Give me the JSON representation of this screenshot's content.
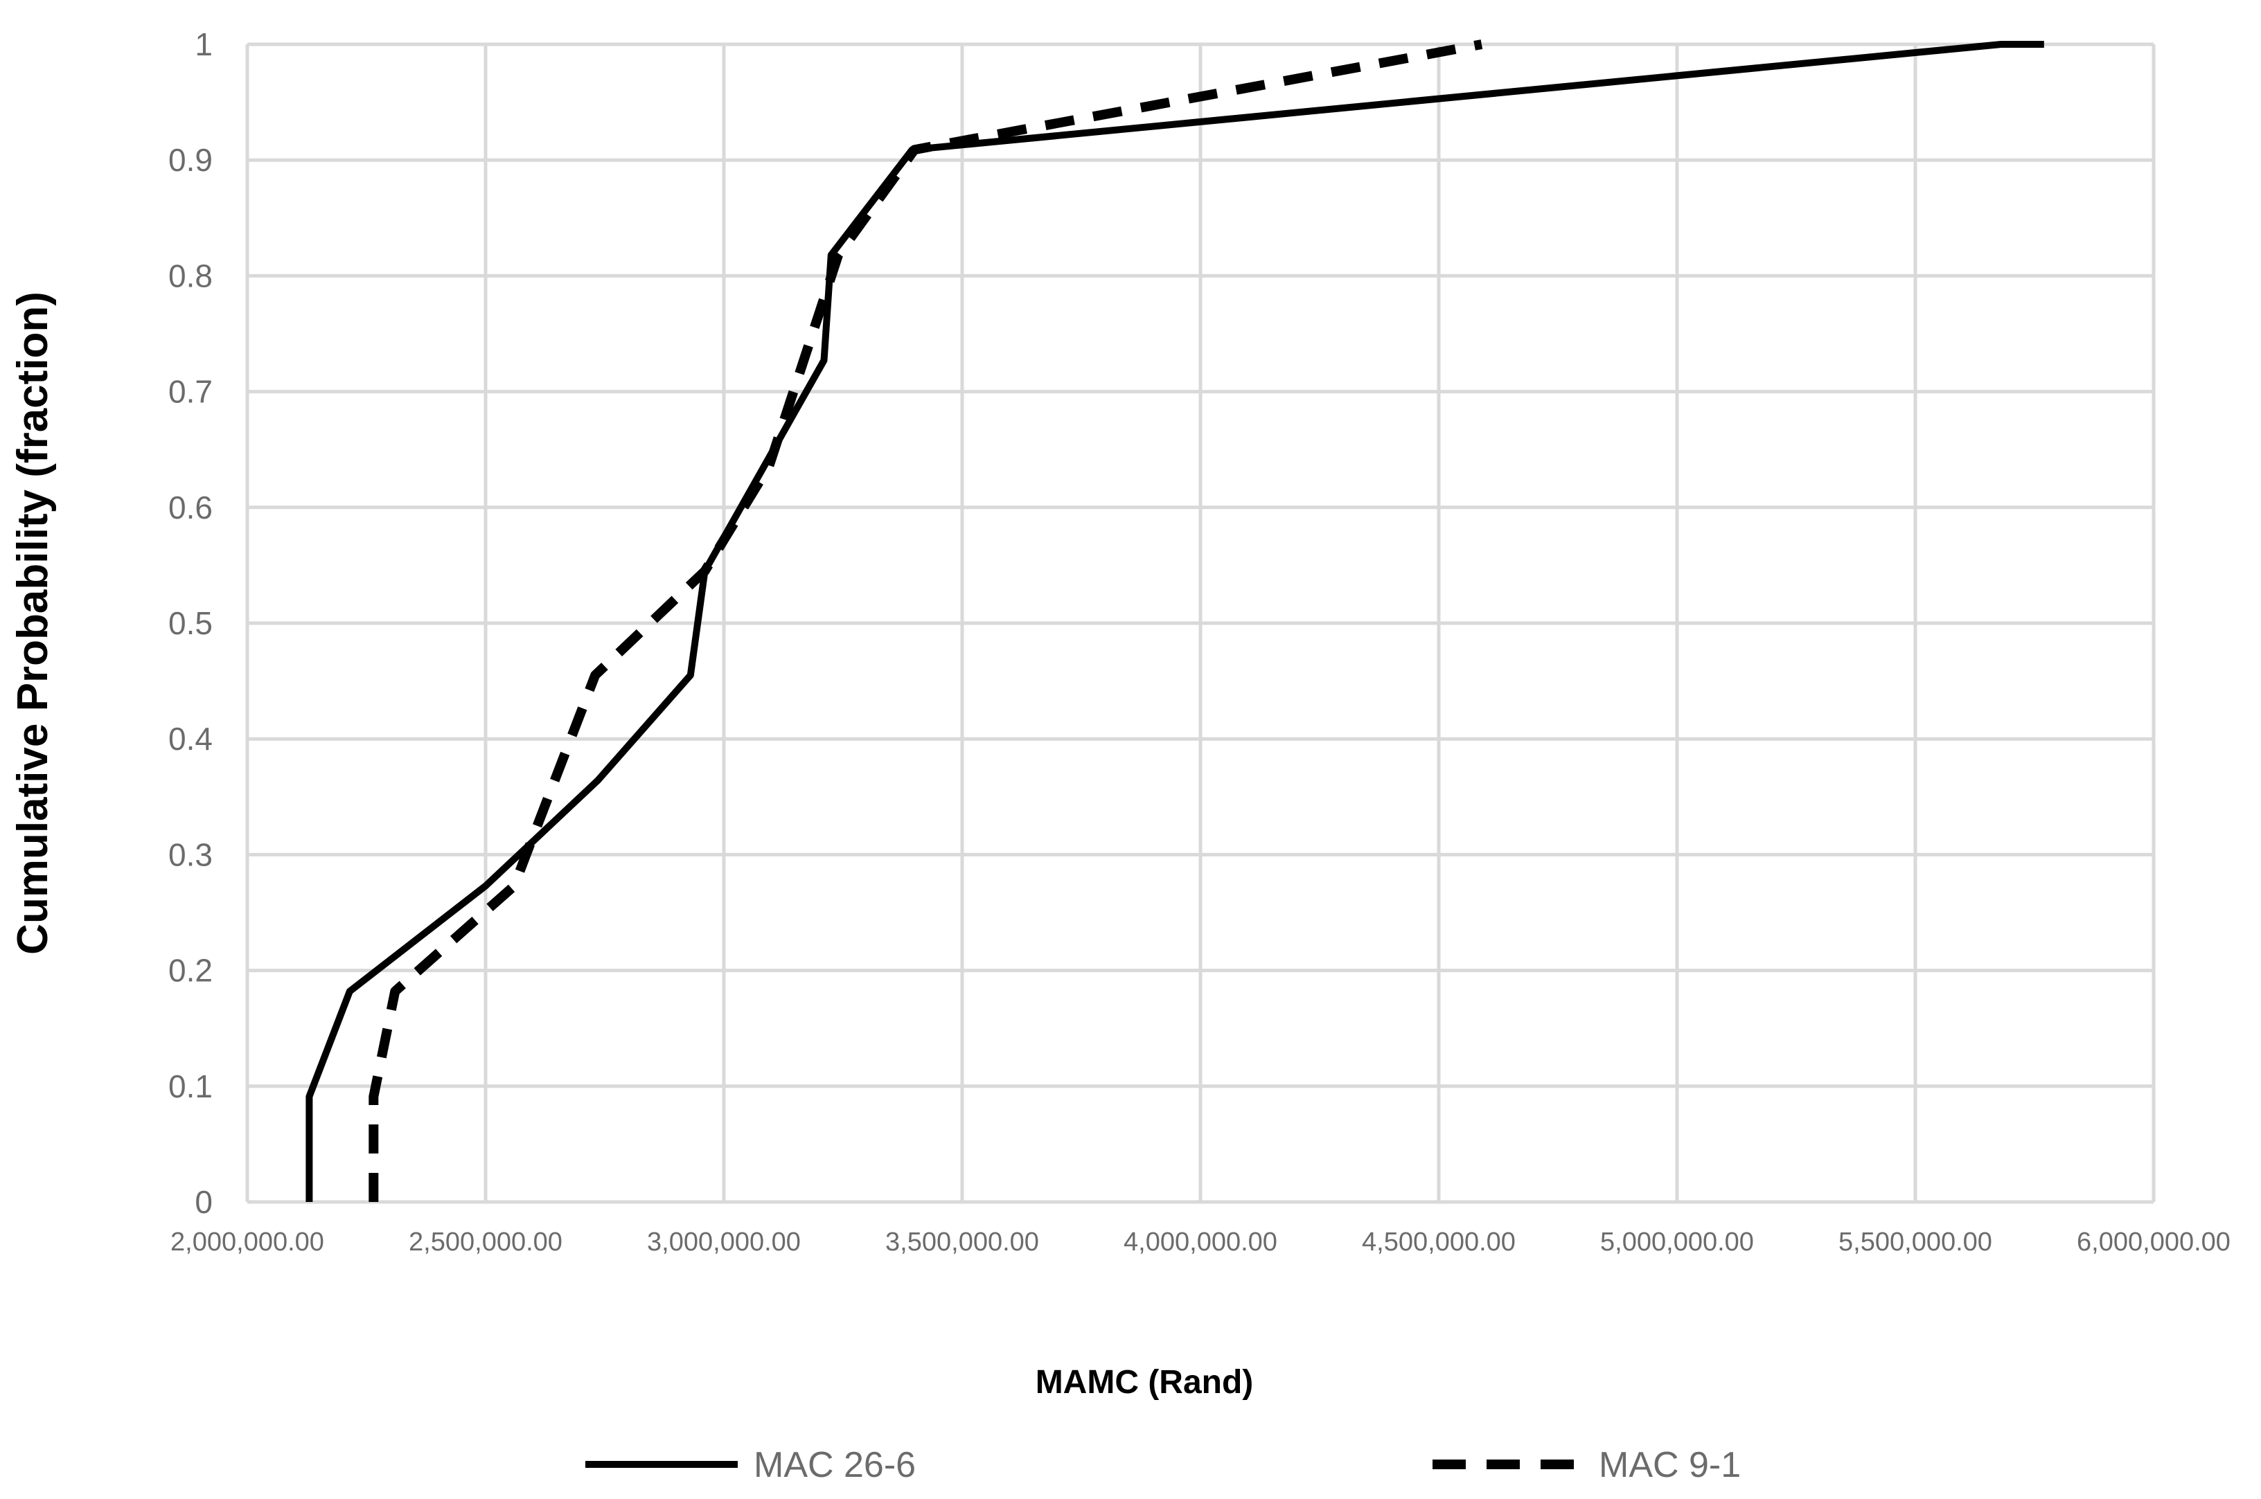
{
  "chart_data": {
    "type": "line",
    "title": "",
    "xlabel": "MAMC (Rand)",
    "ylabel": "Cumulative Probability (fraction)",
    "xlim": [
      2000000,
      6000000
    ],
    "ylim": [
      0,
      1
    ],
    "xticks": [
      2000000,
      2500000,
      3000000,
      3500000,
      4000000,
      4500000,
      5000000,
      5500000,
      6000000
    ],
    "xtick_labels": [
      "2,000,000.00",
      "2,500,000.00",
      "3,000,000.00",
      "3,500,000.00",
      "4,000,000.00",
      "4,500,000.00",
      "5,000,000.00",
      "5,500,000.00",
      "6,000,000.00"
    ],
    "yticks": [
      0,
      0.1,
      0.2,
      0.3,
      0.4,
      0.5,
      0.6,
      0.7,
      0.8,
      0.9,
      1
    ],
    "ytick_labels": [
      "0",
      "0.1",
      "0.2",
      "0.3",
      "0.4",
      "0.5",
      "0.6",
      "0.7",
      "0.8",
      "0.9",
      "1"
    ],
    "grid": true,
    "legend_position": "bottom",
    "series": [
      {
        "name": "MAC 26-6",
        "style": "solid",
        "color": "#000000",
        "x": [
          2130000,
          2130000,
          2215000,
          2500000,
          2735000,
          2930000,
          2960000,
          3210000,
          3225000,
          3395000,
          5680000,
          5770000
        ],
        "y": [
          0,
          0.091,
          0.182,
          0.273,
          0.364,
          0.455,
          0.545,
          0.727,
          0.818,
          0.909,
          1.0,
          1.0
        ]
      },
      {
        "name": "MAC 9-1",
        "style": "dashed",
        "color": "#000000",
        "x": [
          2265000,
          2265000,
          2310000,
          2560000,
          2585000,
          2730000,
          2960000,
          3095000,
          3240000,
          3400000,
          4590000
        ],
        "y": [
          0,
          0.091,
          0.182,
          0.273,
          0.3,
          0.455,
          0.545,
          0.636,
          0.818,
          0.909,
          1.0
        ]
      }
    ]
  }
}
